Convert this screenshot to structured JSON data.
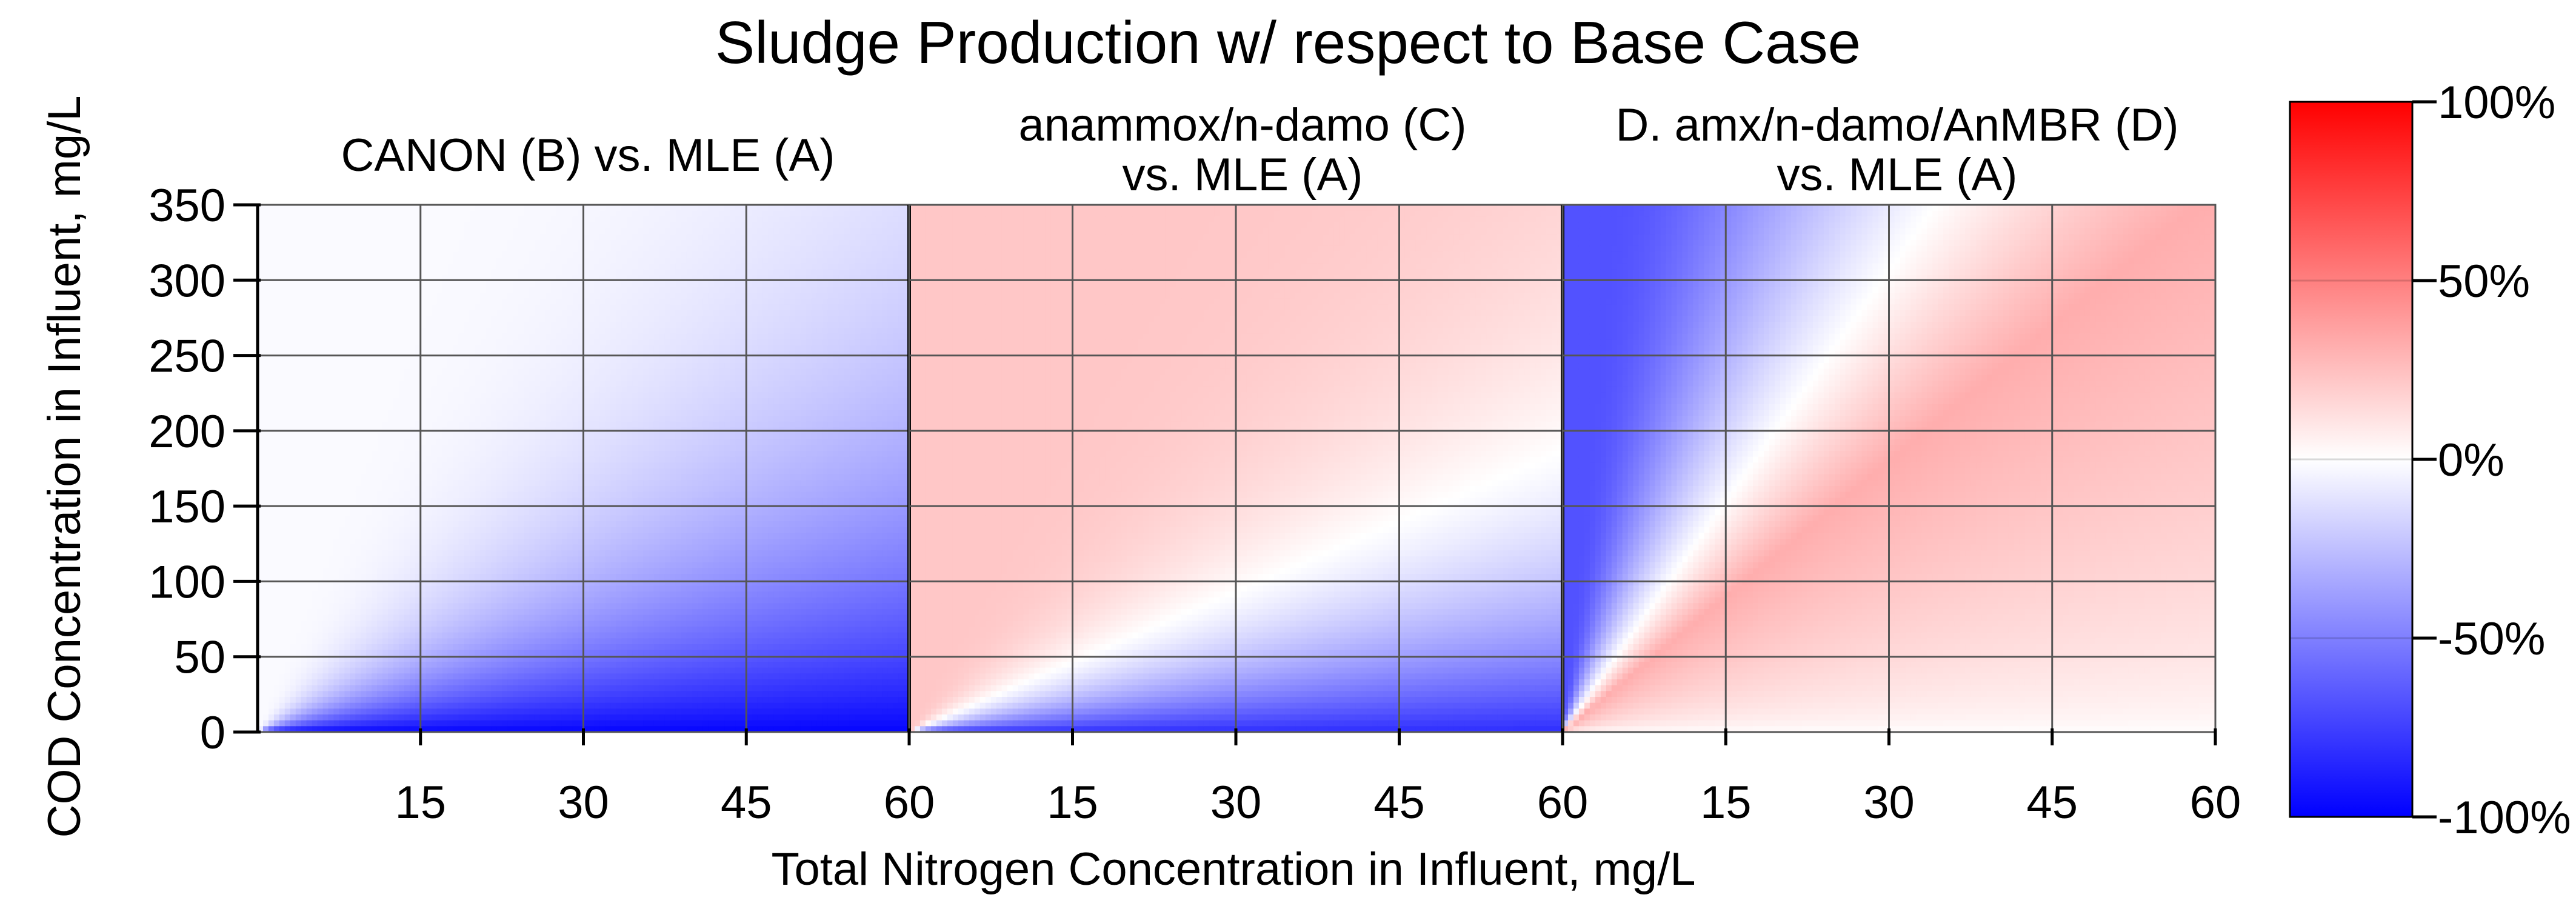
{
  "chart_data": {
    "type": "heatmap",
    "title": "Sludge Production w/ respect to Base Case",
    "xlabel": "Total Nitrogen Concentration in Influent, mg/L",
    "ylabel": "COD Concentration in Influent, mg/L",
    "xlim": [
      0,
      60
    ],
    "ylim": [
      0,
      350
    ],
    "x_ticks": [
      "15",
      "30",
      "45",
      "60"
    ],
    "y_ticks": [
      "0",
      "50",
      "100",
      "150",
      "200",
      "250",
      "300",
      "350"
    ],
    "grid": true,
    "colorbar": {
      "range": [
        -100,
        100
      ],
      "ticks": [
        "-100%",
        "-50%",
        "0%",
        "50%",
        "100%"
      ],
      "low_color": "#0000ff",
      "mid_color": "#ffffff",
      "high_color": "#ff0000"
    },
    "panels": [
      {
        "title_lines": [
          "CANON (B) vs. MLE (A)"
        ],
        "description_samples": [
          {
            "x": 60,
            "y": 0,
            "value": -95
          },
          {
            "x": 60,
            "y": 100,
            "value": -70
          },
          {
            "x": 60,
            "y": 200,
            "value": -40
          },
          {
            "x": 60,
            "y": 350,
            "value": -5
          },
          {
            "x": 15,
            "y": 300,
            "value": -2
          }
        ]
      },
      {
        "title_lines": [
          "anammox/n-damo (C)",
          "vs. MLE (A)"
        ],
        "description_samples": [
          {
            "x": 60,
            "y": 0,
            "value": -75
          },
          {
            "x": 30,
            "y": 100,
            "value": 0
          },
          {
            "x": 15,
            "y": 200,
            "value": 5
          },
          {
            "x": 60,
            "y": 350,
            "value": 20
          }
        ]
      },
      {
        "title_lines": [
          "D. amx/n-damo/AnMBR (D)",
          "vs. MLE (A)"
        ],
        "description_samples": [
          {
            "x": 2,
            "y": 300,
            "value": -70
          },
          {
            "x": 15,
            "y": 100,
            "value": 25
          },
          {
            "x": 30,
            "y": 200,
            "value": 35
          },
          {
            "x": 60,
            "y": 350,
            "value": 35
          },
          {
            "x": 60,
            "y": 0,
            "value": 0
          }
        ]
      }
    ]
  }
}
